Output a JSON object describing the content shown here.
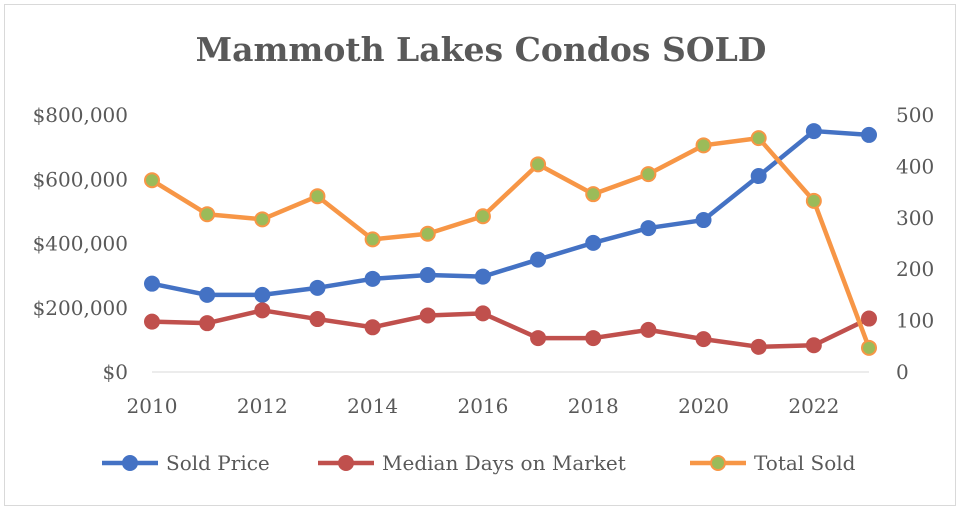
{
  "chart_data": {
    "type": "line",
    "title": "Mammoth Lakes Condos SOLD",
    "x": [
      2010,
      2011,
      2012,
      2013,
      2014,
      2015,
      2016,
      2017,
      2018,
      2019,
      2020,
      2021,
      2022,
      2023
    ],
    "x_ticks": [
      "2010",
      "2012",
      "2014",
      "2016",
      "2018",
      "2020",
      "2022"
    ],
    "y_left_ticks": [
      "$0",
      "$200,000",
      "$400,000",
      "$600,000",
      "$800,000"
    ],
    "y_right_ticks": [
      "0",
      "100",
      "200",
      "300",
      "400",
      "500"
    ],
    "ylim_left": [
      0,
      800000
    ],
    "ylim_right": [
      0,
      500
    ],
    "grid": false,
    "legend_position": "bottom",
    "series": [
      {
        "name": "Sold Price",
        "axis": "left",
        "color": "#4472c4",
        "marker_color": "#4472c4",
        "values": [
          275000,
          240000,
          240000,
          262000,
          290000,
          302000,
          297000,
          350000,
          402000,
          448000,
          473000,
          610000,
          750000,
          738000
        ]
      },
      {
        "name": "Median Days on Market",
        "axis": "right",
        "color": "#c0504d",
        "marker_color": "#c0504d",
        "values": [
          98,
          95,
          120,
          103,
          87,
          110,
          114,
          66,
          66,
          82,
          64,
          49,
          52,
          104
        ]
      },
      {
        "name": "Total Sold",
        "axis": "right",
        "color": "#f79646",
        "marker_color": "#9bbb59",
        "values": [
          373,
          307,
          297,
          342,
          258,
          269,
          303,
          404,
          346,
          385,
          441,
          455,
          333,
          47
        ]
      }
    ]
  }
}
